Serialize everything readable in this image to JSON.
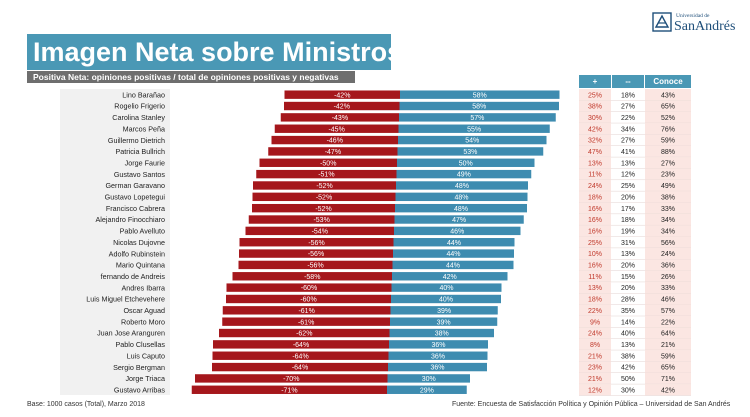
{
  "title": "Imagen Neta sobre Ministros",
  "subtitle": "Positiva Neta: opiniones positivas / total de opiniones positivas y negativas",
  "logo": {
    "small": "Universidad de",
    "big": "SanAndrés",
    "icon": "university-crest-icon"
  },
  "table_headers": {
    "pos": "+",
    "neg": "--",
    "conoce": "Conoce"
  },
  "footer_left": "Base: 1000 casos (Total), Marzo 2018",
  "footer_right": "Fuente: Encuesta de Satisfacción Política y Opinión Pública – Universidad de San Andrés",
  "colors": {
    "negative": "#a5171c",
    "positive": "#3e8cb0",
    "header": "#4a98b5",
    "pos_text": "#c0392b",
    "highlight": "#fbe6e2"
  },
  "chart_data": {
    "type": "bar",
    "orientation": "horizontal-diverging",
    "categories": [
      "Lino Barañao",
      "Rogelio Frigerio",
      "Carolina Stanley",
      "Marcos Peña",
      "Guillermo Dietrich",
      "Patricia Bullrich",
      "Jorge Faurie",
      "Gustavo Santos",
      "German Garavano",
      "Gustavo Lopetegui",
      "Francisco Cabrera",
      "Alejandro Finocchiaro",
      "Pablo Avelluto",
      "Nicolas Dujovne",
      "Adolfo Rubinstein",
      "Mario Quintana",
      "fernando de Andreis",
      "Andres Ibarra",
      "Luis Miguel Etchevehere",
      "Oscar Aguad",
      "Roberto Moro",
      "Juan Jose Aranguren",
      "Pablo Clusellas",
      "Luis Caputo",
      "Sergio Bergman",
      "Jorge Triaca",
      "Gustavo Arribas"
    ],
    "series": [
      {
        "values": [
          -42,
          -42,
          -43,
          -45,
          -46,
          -47,
          -50,
          -51,
          -52,
          -52,
          -52,
          -53,
          -54,
          -56,
          -56,
          -56,
          -58,
          -60,
          -60,
          -61,
          -61,
          -62,
          -64,
          -64,
          -64,
          -70,
          -71
        ],
        "labels": [
          "-42%",
          "-42%",
          "-43%",
          "-45%",
          "-46%",
          "-47%",
          "-50%",
          "-51%",
          "-52%",
          "-52%",
          "-52%",
          "-53%",
          "-54%",
          "-56%",
          "-56%",
          "-56%",
          "-58%",
          "-60%",
          "-60%",
          "-61%",
          "-61%",
          "-62%",
          "-64%",
          "-64%",
          "-64%",
          "-70%",
          "-71%"
        ]
      },
      {
        "values": [
          58,
          58,
          57,
          55,
          54,
          53,
          50,
          49,
          48,
          48,
          48,
          47,
          46,
          44,
          44,
          44,
          42,
          40,
          40,
          39,
          39,
          38,
          36,
          36,
          36,
          30,
          29
        ],
        "labels": [
          "58%",
          "58%",
          "57%",
          "55%",
          "54%",
          "53%",
          "50%",
          "49%",
          "48%",
          "48%",
          "48%",
          "47%",
          "46%",
          "44%",
          "44%",
          "44%",
          "42%",
          "40%",
          "40%",
          "39%",
          "39%",
          "38%",
          "36%",
          "36%",
          "36%",
          "30%",
          "29%"
        ]
      }
    ],
    "table": {
      "pos": [
        "25%",
        "38%",
        "30%",
        "42%",
        "32%",
        "47%",
        "13%",
        "11%",
        "24%",
        "18%",
        "16%",
        "16%",
        "16%",
        "25%",
        "10%",
        "16%",
        "11%",
        "13%",
        "18%",
        "22%",
        "9%",
        "24%",
        "8%",
        "21%",
        "23%",
        "21%",
        "12%"
      ],
      "neg": [
        "18%",
        "27%",
        "22%",
        "34%",
        "27%",
        "41%",
        "13%",
        "12%",
        "25%",
        "20%",
        "17%",
        "18%",
        "19%",
        "31%",
        "13%",
        "20%",
        "15%",
        "20%",
        "28%",
        "35%",
        "14%",
        "40%",
        "13%",
        "38%",
        "42%",
        "50%",
        "30%"
      ],
      "conoce": [
        "43%",
        "65%",
        "52%",
        "76%",
        "59%",
        "88%",
        "27%",
        "23%",
        "49%",
        "38%",
        "33%",
        "34%",
        "34%",
        "56%",
        "24%",
        "36%",
        "26%",
        "33%",
        "46%",
        "57%",
        "22%",
        "64%",
        "21%",
        "59%",
        "65%",
        "71%",
        "42%"
      ]
    }
  }
}
